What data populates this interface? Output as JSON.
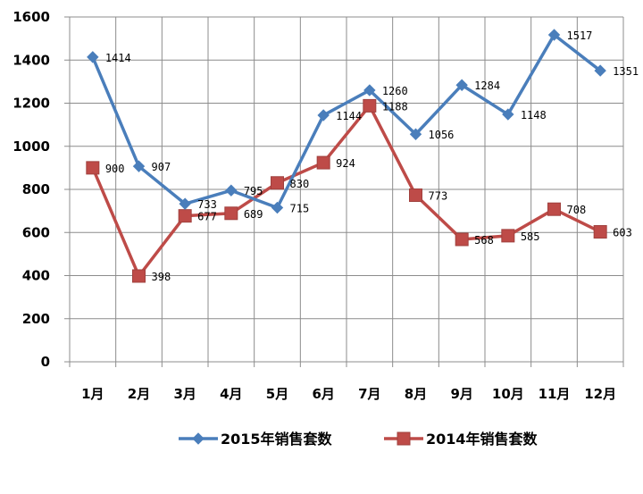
{
  "chart_data": {
    "type": "line",
    "categories": [
      "1月",
      "2月",
      "3月",
      "4月",
      "5月",
      "6月",
      "7月",
      "8月",
      "9月",
      "10月",
      "11月",
      "12月"
    ],
    "series": [
      {
        "name": "2015年销售套数",
        "color": "#4a7ebb",
        "marker": "diamond",
        "values": [
          1414,
          907,
          733,
          795,
          715,
          1144,
          1260,
          1056,
          1284,
          1148,
          1517,
          1351
        ]
      },
      {
        "name": "2014年销售套数",
        "color": "#be4b48",
        "marker": "square",
        "values": [
          900,
          398,
          677,
          689,
          830,
          924,
          1188,
          773,
          568,
          585,
          708,
          603
        ]
      }
    ],
    "ylim": [
      0,
      1600
    ],
    "yticks": [
      "0",
      "200",
      "400",
      "600",
      "800",
      "1000",
      "1200",
      "1400",
      "1600"
    ],
    "grid": true,
    "legend_position": "bottom"
  }
}
